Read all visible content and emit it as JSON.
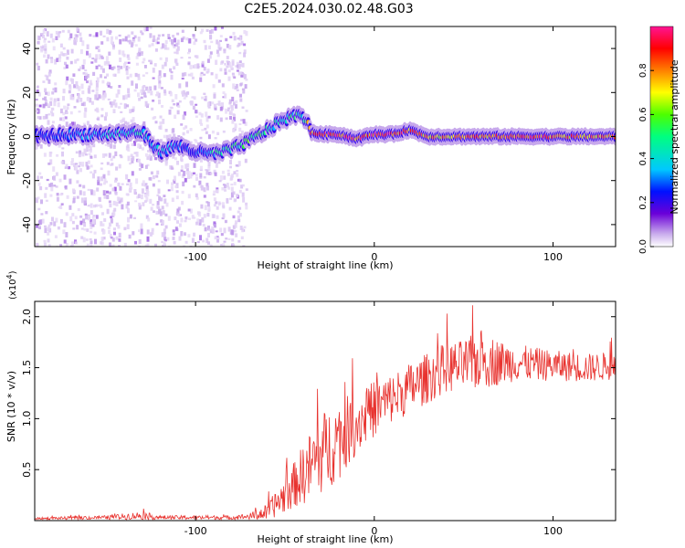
{
  "figure_title": "C2E5.2024.030.02.48.G03",
  "chart_data": [
    {
      "type": "heatmap",
      "xlabel": "Height of straight line (km)",
      "ylabel": "Frequency (Hz)",
      "xlim": [
        -190,
        135
      ],
      "ylim": [
        -50,
        50
      ],
      "x_ticks": [
        -100,
        0,
        100
      ],
      "y_ticks": [
        -40,
        -20,
        0,
        20,
        40
      ],
      "colorbar": {
        "label": "Normalized spectral amplitude",
        "range": [
          0.0,
          1.0
        ],
        "ticks": [
          0.0,
          0.2,
          0.4,
          0.6,
          0.8
        ],
        "colormap": [
          "#ffffff",
          "#c7a8ec",
          "#6a00d8",
          "#0010ff",
          "#00c8ff",
          "#00ff80",
          "#4cff00",
          "#ffff00",
          "#ff8000",
          "#ff0000",
          "#ff1493"
        ]
      },
      "ridge": {
        "name": "",
        "x": [
          -190,
          -170,
          -150,
          -130,
          -120,
          -110,
          -100,
          -90,
          -80,
          -70,
          -60,
          -50,
          -40,
          -35,
          -30,
          -20,
          -10,
          0,
          10,
          20,
          30,
          40,
          60,
          80,
          100,
          120,
          135
        ],
        "freq": [
          0,
          1,
          1,
          2,
          -7,
          -4,
          -7,
          -8,
          -6,
          -2,
          3,
          8,
          10,
          2,
          1,
          1,
          -1,
          1,
          1,
          3,
          0,
          0,
          0,
          0,
          0,
          0,
          0
        ],
        "amplitude": [
          0.3,
          0.35,
          0.4,
          0.45,
          0.4,
          0.35,
          0.3,
          0.45,
          0.5,
          0.55,
          0.5,
          0.45,
          0.5,
          0.85,
          0.95,
          0.95,
          0.9,
          0.95,
          0.9,
          0.85,
          0.75,
          0.75,
          0.8,
          0.85,
          0.85,
          0.8,
          0.8
        ]
      }
    },
    {
      "type": "line",
      "xlabel": "Height of straight line (km)",
      "ylabel": "SNR (10 * v/v)",
      "y_multiplier": "(x10",
      "y_multiplier_exp": "4",
      "y_multiplier_close": ")",
      "xlim": [
        -190,
        135
      ],
      "ylim": [
        0,
        2.15
      ],
      "x_ticks": [
        -100,
        0,
        100
      ],
      "y_ticks": [
        0.5,
        1.0,
        1.5,
        2.0
      ],
      "y_tick_labels": [
        "0.5",
        "1.0",
        "1.5",
        "2.0"
      ],
      "color": "#e8332f",
      "series": [
        {
          "name": "",
          "x": [
            -190,
            -150,
            -130,
            -120,
            -100,
            -80,
            -70,
            -60,
            -50,
            -45,
            -40,
            -30,
            -20,
            -10,
            0,
            10,
            20,
            30,
            40,
            50,
            60,
            70,
            80,
            100,
            120,
            135
          ],
          "mean": [
            0.02,
            0.03,
            0.05,
            0.03,
            0.03,
            0.03,
            0.04,
            0.08,
            0.25,
            0.35,
            0.45,
            0.65,
            0.8,
            0.95,
            1.1,
            1.2,
            1.3,
            1.4,
            1.5,
            1.52,
            1.58,
            1.55,
            1.55,
            1.52,
            1.5,
            1.52
          ],
          "spread": [
            0.01,
            0.02,
            0.04,
            0.02,
            0.02,
            0.02,
            0.03,
            0.08,
            0.18,
            0.22,
            0.3,
            0.4,
            0.4,
            0.3,
            0.28,
            0.25,
            0.25,
            0.25,
            0.25,
            0.25,
            0.3,
            0.22,
            0.18,
            0.15,
            0.14,
            0.14
          ]
        }
      ]
    }
  ]
}
